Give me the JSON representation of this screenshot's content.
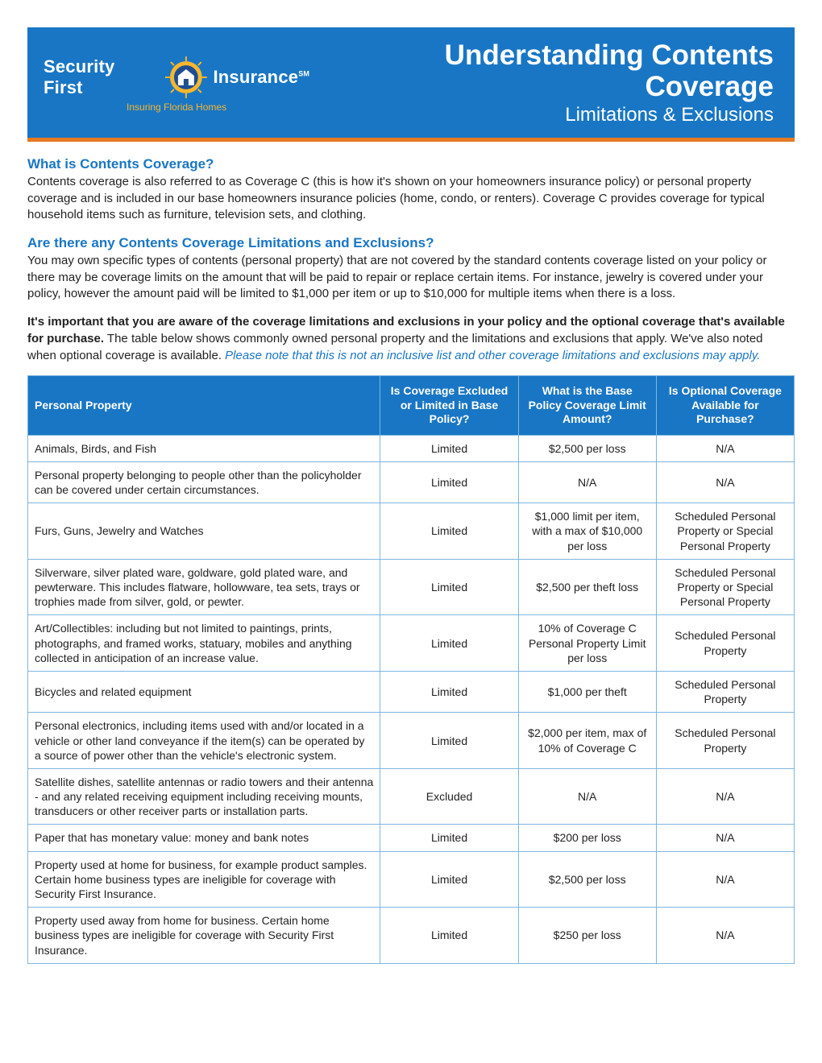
{
  "banner": {
    "brand_left": "Security First",
    "brand_right": "Insurance",
    "brand_sm": "SM",
    "tagline": "Insuring Florida Homes",
    "title": "Understanding Contents Coverage",
    "subtitle": "Limitations & Exclusions",
    "bg_color": "#1976c4",
    "accent_color": "#e67a23",
    "tagline_color": "#f7b62e"
  },
  "sections": {
    "s1_heading": "What is Contents Coverage?",
    "s1_body": "Contents coverage is also referred to as Coverage C (this is how it's shown on your homeowners insurance policy) or personal property coverage and is included in our base homeowners insurance policies (home, condo, or renters). Coverage C provides coverage for typical household items such as furniture, television sets, and clothing.",
    "s2_heading": "Are there any Contents Coverage Limitations and Exclusions?",
    "s2_body": "You may own specific types of contents (personal property) that are not covered by the standard contents coverage listed on your policy or there may be coverage limits on the amount that will be paid to repair or replace certain items. For instance, jewelry is covered under your policy, however the amount paid will be limited to $1,000 per item or up to $10,000 for multiple items when there is a loss.",
    "s3_bold": "It's important that you are aware of the coverage limitations and exclusions in your policy and the optional coverage that's available for purchase.",
    "s3_body": " The table below shows commonly owned personal property and the limitations and exclusions that apply. We've also noted when optional coverage is available. ",
    "s3_italic": "Please note that this is not an inclusive list and other coverage limitations and exclusions may apply."
  },
  "table": {
    "headers": {
      "col1": "Personal Property",
      "col2": "Is Coverage Excluded or Limited in Base Policy?",
      "col3": "What is the Base Policy Coverage Limit Amount?",
      "col4": "Is Optional Coverage Available for Purchase?"
    },
    "rows": [
      {
        "prop": "Animals, Birds, and Fish",
        "status": "Limited",
        "limit": "$2,500 per loss",
        "optional": "N/A"
      },
      {
        "prop": "Personal property belonging to people other than the policyholder can be covered under certain circumstances.",
        "status": "Limited",
        "limit": "N/A",
        "optional": "N/A"
      },
      {
        "prop": "Furs, Guns, Jewelry and Watches",
        "status": "Limited",
        "limit": "$1,000 limit per item, with a max of $10,000 per loss",
        "optional": "Scheduled Personal Property or Special Personal Property"
      },
      {
        "prop": "Silverware, silver plated ware, goldware, gold plated ware, and pewterware. This includes flatware, hollowware, tea sets, trays or trophies made from silver, gold, or pewter.",
        "status": "Limited",
        "limit": "$2,500 per theft loss",
        "optional": "Scheduled Personal Property or Special Personal Property"
      },
      {
        "prop": "Art/Collectibles: including but not limited to paintings, prints, photographs, and framed works, statuary, mobiles and anything collected in anticipation of an increase value.",
        "status": "Limited",
        "limit": "10% of Coverage C Personal Property Limit per loss",
        "optional": "Scheduled Personal Property"
      },
      {
        "prop": "Bicycles and related equipment",
        "status": "Limited",
        "limit": "$1,000 per theft",
        "optional": "Scheduled Personal Property"
      },
      {
        "prop": "Personal electronics, including items used with and/or located in a vehicle or other land conveyance if the item(s) can be operated by a source of power other than the vehicle's electronic system.",
        "status": "Limited",
        "limit": "$2,000 per item, max of 10% of Coverage C",
        "optional": "Scheduled Personal Property"
      },
      {
        "prop": "Satellite dishes, satellite antennas or radio towers and their antenna - and any related receiving equipment including receiving mounts, transducers or other receiver parts or installation parts.",
        "status": "Excluded",
        "limit": "N/A",
        "optional": "N/A"
      },
      {
        "prop": "Paper that has monetary value: money and bank notes",
        "status": "Limited",
        "limit": "$200 per loss",
        "optional": "N/A"
      },
      {
        "prop": "Property used at home for business, for example product samples. Certain home business types are ineligible for coverage with Security First Insurance.",
        "status": "Limited",
        "limit": "$2,500 per loss",
        "optional": "N/A"
      },
      {
        "prop": "Property used away from home for business. Certain home business types are ineligible for coverage with Security First Insurance.",
        "status": "Limited",
        "limit": "$250 per loss",
        "optional": "N/A"
      }
    ]
  }
}
